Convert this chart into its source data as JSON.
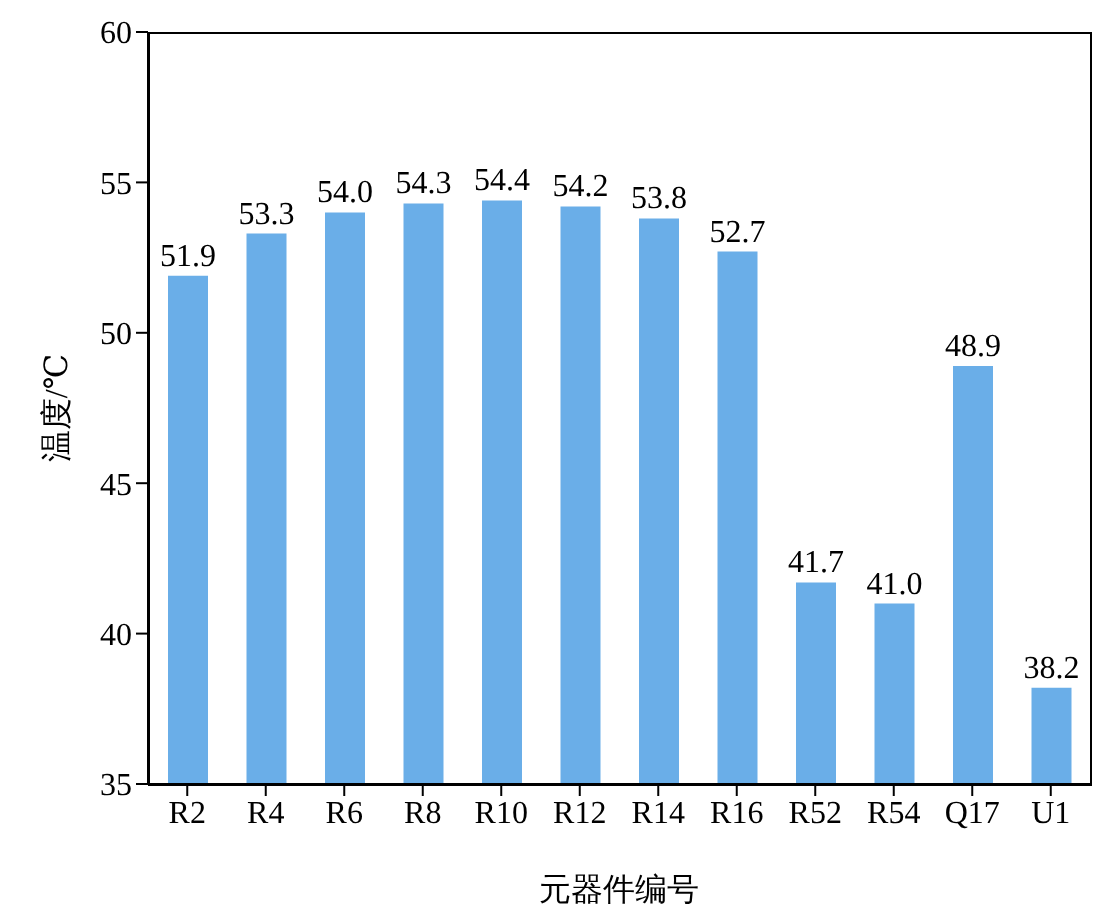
{
  "chart_data": {
    "type": "bar",
    "xlabel": "元器件编号",
    "ylabel": "温度/℃",
    "categories": [
      "R2",
      "R4",
      "R6",
      "R8",
      "R10",
      "R12",
      "R14",
      "R16",
      "R52",
      "R54",
      "Q17",
      "U1"
    ],
    "values": [
      51.9,
      53.3,
      54.0,
      54.3,
      54.4,
      54.2,
      53.8,
      52.7,
      41.7,
      41.0,
      48.9,
      38.2
    ],
    "value_labels": [
      "51.9",
      "53.3",
      "54.0",
      "54.3",
      "54.4",
      "54.2",
      "53.8",
      "52.7",
      "41.7",
      "41.0",
      "48.9",
      "38.2"
    ],
    "color": "#6aaee8",
    "ylim": [
      35,
      60
    ],
    "yticks": [
      35,
      40,
      45,
      50,
      55,
      60
    ],
    "grid": false,
    "legend": false
  }
}
